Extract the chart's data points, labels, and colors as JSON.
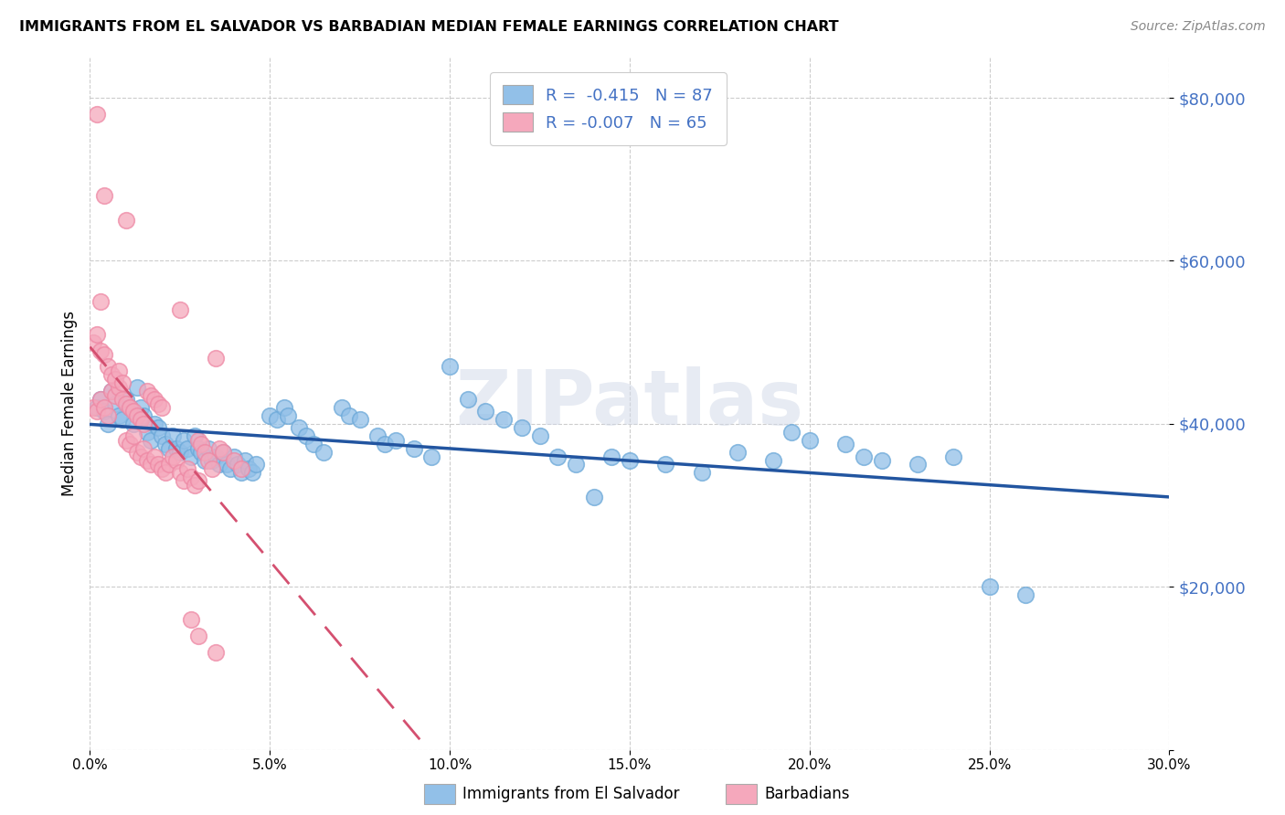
{
  "title": "IMMIGRANTS FROM EL SALVADOR VS BARBADIAN MEDIAN FEMALE EARNINGS CORRELATION CHART",
  "source": "Source: ZipAtlas.com",
  "ylabel": "Median Female Earnings",
  "y_ticks": [
    0,
    20000,
    40000,
    60000,
    80000
  ],
  "y_tick_labels": [
    "",
    "$20,000",
    "$40,000",
    "$60,000",
    "$80,000"
  ],
  "x_min": 0.0,
  "x_max": 0.3,
  "y_min": 0,
  "y_max": 85000,
  "legend_label_blue": "Immigrants from El Salvador",
  "legend_label_pink": "Barbadians",
  "blue_color": "#92C0E8",
  "pink_color": "#F5A8BC",
  "blue_edge": "#6BA8D8",
  "pink_edge": "#EE88A4",
  "line_blue": "#2255A0",
  "line_pink": "#D45070",
  "tick_color": "#4472C4",
  "watermark": "ZIPatlas",
  "blue_scatter": [
    [
      0.002,
      42000
    ],
    [
      0.003,
      43000
    ],
    [
      0.004,
      41500
    ],
    [
      0.005,
      40000
    ],
    [
      0.006,
      44000
    ],
    [
      0.007,
      42500
    ],
    [
      0.008,
      41000
    ],
    [
      0.009,
      40500
    ],
    [
      0.01,
      43000
    ],
    [
      0.011,
      42000
    ],
    [
      0.012,
      40000
    ],
    [
      0.013,
      44500
    ],
    [
      0.014,
      42000
    ],
    [
      0.015,
      41000
    ],
    [
      0.016,
      39000
    ],
    [
      0.017,
      38000
    ],
    [
      0.018,
      40000
    ],
    [
      0.019,
      39500
    ],
    [
      0.02,
      38500
    ],
    [
      0.021,
      37500
    ],
    [
      0.022,
      37000
    ],
    [
      0.023,
      38500
    ],
    [
      0.024,
      37000
    ],
    [
      0.025,
      36500
    ],
    [
      0.026,
      38000
    ],
    [
      0.027,
      37000
    ],
    [
      0.028,
      36000
    ],
    [
      0.029,
      38500
    ],
    [
      0.03,
      37000
    ],
    [
      0.031,
      36500
    ],
    [
      0.032,
      35500
    ],
    [
      0.033,
      37000
    ],
    [
      0.034,
      35500
    ],
    [
      0.035,
      36000
    ],
    [
      0.036,
      35000
    ],
    [
      0.037,
      36500
    ],
    [
      0.038,
      35000
    ],
    [
      0.039,
      34500
    ],
    [
      0.04,
      36000
    ],
    [
      0.041,
      35000
    ],
    [
      0.042,
      34000
    ],
    [
      0.043,
      35500
    ],
    [
      0.044,
      34500
    ],
    [
      0.045,
      34000
    ],
    [
      0.046,
      35000
    ],
    [
      0.05,
      41000
    ],
    [
      0.052,
      40500
    ],
    [
      0.054,
      42000
    ],
    [
      0.055,
      41000
    ],
    [
      0.058,
      39500
    ],
    [
      0.06,
      38500
    ],
    [
      0.062,
      37500
    ],
    [
      0.065,
      36500
    ],
    [
      0.07,
      42000
    ],
    [
      0.072,
      41000
    ],
    [
      0.075,
      40500
    ],
    [
      0.08,
      38500
    ],
    [
      0.082,
      37500
    ],
    [
      0.085,
      38000
    ],
    [
      0.09,
      37000
    ],
    [
      0.095,
      36000
    ],
    [
      0.1,
      47000
    ],
    [
      0.105,
      43000
    ],
    [
      0.11,
      41500
    ],
    [
      0.115,
      40500
    ],
    [
      0.12,
      39500
    ],
    [
      0.125,
      38500
    ],
    [
      0.13,
      36000
    ],
    [
      0.135,
      35000
    ],
    [
      0.14,
      31000
    ],
    [
      0.145,
      36000
    ],
    [
      0.15,
      35500
    ],
    [
      0.16,
      35000
    ],
    [
      0.17,
      34000
    ],
    [
      0.18,
      36500
    ],
    [
      0.19,
      35500
    ],
    [
      0.195,
      39000
    ],
    [
      0.2,
      38000
    ],
    [
      0.21,
      37500
    ],
    [
      0.215,
      36000
    ],
    [
      0.22,
      35500
    ],
    [
      0.23,
      35000
    ],
    [
      0.24,
      36000
    ],
    [
      0.25,
      20000
    ],
    [
      0.26,
      19000
    ]
  ],
  "pink_scatter": [
    [
      0.001,
      42000
    ],
    [
      0.002,
      41500
    ],
    [
      0.003,
      43000
    ],
    [
      0.004,
      42000
    ],
    [
      0.005,
      41000
    ],
    [
      0.006,
      44000
    ],
    [
      0.007,
      43500
    ],
    [
      0.008,
      44500
    ],
    [
      0.009,
      43000
    ],
    [
      0.01,
      42500
    ],
    [
      0.011,
      42000
    ],
    [
      0.012,
      41500
    ],
    [
      0.013,
      41000
    ],
    [
      0.014,
      40500
    ],
    [
      0.015,
      40000
    ],
    [
      0.016,
      44000
    ],
    [
      0.017,
      43500
    ],
    [
      0.018,
      43000
    ],
    [
      0.019,
      42500
    ],
    [
      0.02,
      42000
    ],
    [
      0.001,
      50000
    ],
    [
      0.002,
      51000
    ],
    [
      0.003,
      49000
    ],
    [
      0.004,
      48500
    ],
    [
      0.005,
      47000
    ],
    [
      0.006,
      46000
    ],
    [
      0.007,
      45500
    ],
    [
      0.008,
      46500
    ],
    [
      0.009,
      45000
    ],
    [
      0.01,
      38000
    ],
    [
      0.011,
      37500
    ],
    [
      0.012,
      38500
    ],
    [
      0.013,
      36500
    ],
    [
      0.014,
      36000
    ],
    [
      0.015,
      37000
    ],
    [
      0.016,
      35500
    ],
    [
      0.017,
      35000
    ],
    [
      0.018,
      36000
    ],
    [
      0.019,
      35000
    ],
    [
      0.02,
      34500
    ],
    [
      0.021,
      34000
    ],
    [
      0.022,
      35000
    ],
    [
      0.023,
      36000
    ],
    [
      0.024,
      35500
    ],
    [
      0.025,
      34000
    ],
    [
      0.026,
      33000
    ],
    [
      0.027,
      34500
    ],
    [
      0.028,
      33500
    ],
    [
      0.029,
      32500
    ],
    [
      0.03,
      33000
    ],
    [
      0.003,
      55000
    ],
    [
      0.025,
      54000
    ],
    [
      0.004,
      68000
    ],
    [
      0.01,
      65000
    ],
    [
      0.002,
      78000
    ],
    [
      0.03,
      38000
    ],
    [
      0.031,
      37500
    ],
    [
      0.032,
      36500
    ],
    [
      0.033,
      35500
    ],
    [
      0.034,
      34500
    ],
    [
      0.035,
      48000
    ],
    [
      0.036,
      37000
    ],
    [
      0.037,
      36500
    ],
    [
      0.04,
      35500
    ],
    [
      0.042,
      34500
    ],
    [
      0.028,
      16000
    ],
    [
      0.03,
      14000
    ],
    [
      0.035,
      12000
    ]
  ]
}
